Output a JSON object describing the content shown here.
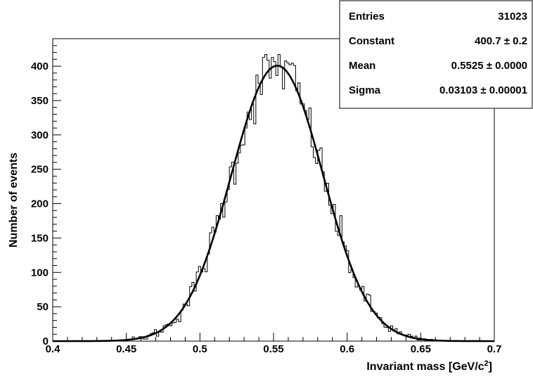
{
  "chart_data": {
    "type": "histogram",
    "xlabel": "Invariant mass [GeV/c",
    "xlabel_sup": "2",
    "xlabel_suffix": "]",
    "ylabel": "Number of events",
    "xlim": [
      0.4,
      0.7
    ],
    "ylim": [
      0,
      440
    ],
    "x_ticks": [
      "0.4",
      "0.45",
      "0.5",
      "0.55",
      "0.6",
      "0.65",
      "0.7"
    ],
    "x_tick_values": [
      0.4,
      0.45,
      0.5,
      0.55,
      0.6,
      0.65,
      0.7
    ],
    "y_ticks": [
      "0",
      "50",
      "100",
      "150",
      "200",
      "250",
      "300",
      "350",
      "400"
    ],
    "y_tick_values": [
      0,
      50,
      100,
      150,
      200,
      250,
      300,
      350,
      400
    ],
    "grid": false,
    "histogram": {
      "bin_width": 0.0015,
      "x_start": 0.4,
      "x_end": 0.7,
      "peak_max": 417
    },
    "fit": {
      "function": "gaussian",
      "constant": 400.7,
      "mean": 0.5525,
      "sigma": 0.03103
    },
    "stats_box": {
      "rows": [
        {
          "label": "Entries",
          "value": "31023"
        },
        {
          "label": "Constant",
          "value": "400.7 ± 0.2"
        },
        {
          "label": "Mean",
          "value": "0.5525 ± 0.0000"
        },
        {
          "label": "Sigma",
          "value": "0.03103 ± 0.00001"
        }
      ]
    }
  }
}
